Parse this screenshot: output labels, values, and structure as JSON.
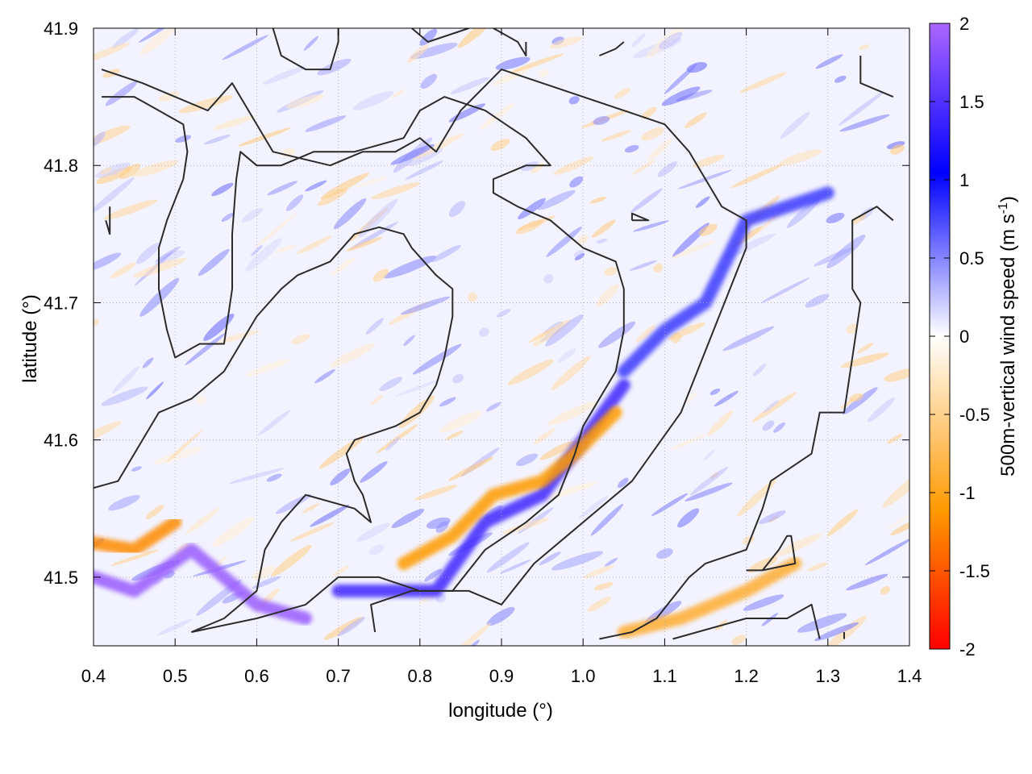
{
  "chart_data": {
    "type": "heatmap",
    "xlabel": "longitude (°)",
    "ylabel": "latitude (°)",
    "colorbar_label": "500m-vertical wind speed (m s",
    "colorbar_label_sup": "-1",
    "colorbar_label_end": ")",
    "xlim": [
      0.4,
      1.4
    ],
    "ylim": [
      41.45,
      41.9
    ],
    "x_ticks": [
      0.4,
      0.5,
      0.6,
      0.7,
      0.8,
      0.9,
      1.0,
      1.1,
      1.2,
      1.3,
      1.4
    ],
    "x_tick_labels": [
      "0.4",
      "0.5",
      "0.6",
      "0.7",
      "0.8",
      "0.9",
      "1.0",
      "1.1",
      "1.2",
      "1.3",
      "1.4"
    ],
    "y_ticks": [
      41.5,
      41.6,
      41.7,
      41.8,
      41.9
    ],
    "y_tick_labels": [
      "41.5",
      "41.6",
      "41.7",
      "41.8",
      "41.9"
    ],
    "colorbar_range": [
      -2,
      2
    ],
    "colorbar_ticks": [
      2,
      1.5,
      1,
      0.5,
      0,
      -0.5,
      -1,
      -1.5,
      -2
    ],
    "colorbar_tick_labels": [
      "2",
      "1.5",
      "1",
      "0.5",
      "0",
      "-0.5",
      "-1",
      "-1.5",
      "-2"
    ],
    "colormap": [
      "#ff0000",
      "#ff9900",
      "#ffffff",
      "#0000ff",
      "#aa66ff"
    ],
    "grid": true,
    "features": [
      {
        "name": "updraft-band-southwest",
        "value": 1.9,
        "points": [
          [
            0.4,
            41.5
          ],
          [
            0.45,
            41.49
          ],
          [
            0.52,
            41.52
          ],
          [
            0.6,
            41.48
          ],
          [
            0.66,
            41.47
          ]
        ]
      },
      {
        "name": "downdraft-band-southwest",
        "value": -1.2,
        "points": [
          [
            0.4,
            41.525
          ],
          [
            0.45,
            41.52
          ],
          [
            0.5,
            41.54
          ]
        ]
      },
      {
        "name": "updraft-band-ridge",
        "value": 1.4,
        "points": [
          [
            0.7,
            41.49
          ],
          [
            0.82,
            41.49
          ],
          [
            0.88,
            41.54
          ],
          [
            0.95,
            41.56
          ],
          [
            1.0,
            41.6
          ],
          [
            1.05,
            41.64
          ]
        ]
      },
      {
        "name": "downdraft-band-ridge",
        "value": -1.1,
        "points": [
          [
            0.78,
            41.51
          ],
          [
            0.84,
            41.53
          ],
          [
            0.89,
            41.56
          ],
          [
            0.95,
            41.57
          ],
          [
            0.99,
            41.59
          ],
          [
            1.04,
            41.62
          ]
        ]
      },
      {
        "name": "downdraft-band-southeast",
        "value": -0.9,
        "points": [
          [
            1.05,
            41.46
          ],
          [
            1.12,
            41.47
          ],
          [
            1.2,
            41.49
          ],
          [
            1.26,
            41.51
          ]
        ]
      },
      {
        "name": "updraft-patch-east",
        "value": 0.8,
        "points": [
          [
            1.05,
            41.65
          ],
          [
            1.1,
            41.68
          ],
          [
            1.15,
            41.7
          ],
          [
            1.2,
            41.76
          ],
          [
            1.3,
            41.78
          ]
        ]
      }
    ],
    "contours": [
      [
        [
          0.41,
          41.87
        ],
        [
          0.46,
          41.86
        ],
        [
          0.54,
          41.84
        ],
        [
          0.57,
          41.86
        ],
        [
          0.6,
          41.83
        ],
        [
          0.62,
          41.81
        ],
        [
          0.69,
          41.8
        ],
        [
          0.73,
          41.81
        ],
        [
          0.77,
          41.81
        ],
        [
          0.8,
          41.82
        ],
        [
          0.82,
          41.81
        ],
        [
          0.85,
          41.84
        ],
        [
          0.9,
          41.87
        ],
        [
          0.95,
          41.86
        ],
        [
          1.0,
          41.85
        ],
        [
          1.05,
          41.84
        ],
        [
          1.1,
          41.83
        ],
        [
          1.13,
          41.81
        ],
        [
          1.15,
          41.79
        ],
        [
          1.17,
          41.77
        ],
        [
          1.2,
          41.76
        ],
        [
          1.2,
          41.74
        ],
        [
          1.16,
          41.68
        ],
        [
          1.12,
          41.62
        ],
        [
          1.06,
          41.57
        ],
        [
          1.0,
          41.54
        ],
        [
          0.94,
          41.51
        ],
        [
          0.9,
          41.48
        ],
        [
          0.86,
          41.49
        ],
        [
          0.79,
          41.49
        ],
        [
          0.74,
          41.48
        ],
        [
          0.745,
          41.46
        ]
      ],
      [
        [
          0.41,
          41.85
        ],
        [
          0.45,
          41.85
        ],
        [
          0.48,
          41.84
        ],
        [
          0.51,
          41.83
        ],
        [
          0.515,
          41.81
        ],
        [
          0.51,
          41.79
        ],
        [
          0.49,
          41.76
        ],
        [
          0.48,
          41.74
        ],
        [
          0.48,
          41.71
        ],
        [
          0.49,
          41.68
        ],
        [
          0.5,
          41.66
        ],
        [
          0.53,
          41.67
        ],
        [
          0.56,
          41.67
        ],
        [
          0.57,
          41.71
        ],
        [
          0.57,
          41.75
        ],
        [
          0.575,
          41.79
        ],
        [
          0.58,
          41.81
        ],
        [
          0.6,
          41.8
        ],
        [
          0.63,
          41.8
        ],
        [
          0.67,
          41.81
        ],
        [
          0.72,
          41.81
        ],
        [
          0.78,
          41.82
        ],
        [
          0.8,
          41.84
        ],
        [
          0.83,
          41.85
        ],
        [
          0.88,
          41.84
        ],
        [
          0.93,
          41.82
        ],
        [
          0.96,
          41.8
        ],
        [
          0.93,
          41.8
        ],
        [
          0.89,
          41.79
        ],
        [
          0.89,
          41.78
        ],
        [
          0.92,
          41.77
        ],
        [
          0.96,
          41.76
        ],
        [
          1.0,
          41.74
        ],
        [
          1.04,
          41.73
        ],
        [
          1.05,
          41.71
        ],
        [
          1.05,
          41.68
        ],
        [
          1.04,
          41.65
        ],
        [
          1.02,
          41.63
        ],
        [
          1.0,
          41.61
        ],
        [
          0.99,
          41.59
        ],
        [
          0.97,
          41.56
        ],
        [
          0.93,
          41.54
        ],
        [
          0.88,
          41.52
        ],
        [
          0.84,
          41.49
        ],
        [
          0.8,
          41.49
        ],
        [
          0.75,
          41.5
        ],
        [
          0.7,
          41.5
        ],
        [
          0.66,
          41.48
        ],
        [
          0.6,
          41.47
        ],
        [
          0.52,
          41.46
        ]
      ],
      [
        [
          0.4,
          41.565
        ],
        [
          0.43,
          41.57
        ],
        [
          0.46,
          41.6
        ],
        [
          0.48,
          41.62
        ],
        [
          0.52,
          41.63
        ],
        [
          0.56,
          41.65
        ],
        [
          0.58,
          41.67
        ],
        [
          0.6,
          41.69
        ],
        [
          0.63,
          41.71
        ],
        [
          0.65,
          41.72
        ],
        [
          0.69,
          41.73
        ],
        [
          0.72,
          41.75
        ],
        [
          0.75,
          41.755
        ],
        [
          0.78,
          41.75
        ],
        [
          0.79,
          41.74
        ],
        [
          0.82,
          41.72
        ],
        [
          0.84,
          41.71
        ],
        [
          0.84,
          41.69
        ],
        [
          0.83,
          41.66
        ],
        [
          0.82,
          41.64
        ],
        [
          0.8,
          41.62
        ],
        [
          0.77,
          41.61
        ],
        [
          0.72,
          41.6
        ],
        [
          0.71,
          41.59
        ],
        [
          0.72,
          41.57
        ],
        [
          0.73,
          41.56
        ],
        [
          0.74,
          41.54
        ],
        [
          0.72,
          41.55
        ],
        [
          0.66,
          41.56
        ],
        [
          0.63,
          41.54
        ],
        [
          0.61,
          41.52
        ],
        [
          0.6,
          41.49
        ],
        [
          0.56,
          41.47
        ],
        [
          0.52,
          41.46
        ]
      ],
      [
        [
          1.38,
          41.85
        ],
        [
          1.34,
          41.86
        ],
        [
          1.34,
          41.88
        ]
      ],
      [
        [
          0.62,
          41.9
        ],
        [
          0.63,
          41.88
        ],
        [
          0.66,
          41.87
        ],
        [
          0.69,
          41.87
        ],
        [
          0.7,
          41.89
        ],
        [
          0.7,
          41.9
        ]
      ],
      [
        [
          0.79,
          41.9
        ],
        [
          0.81,
          41.89
        ],
        [
          0.86,
          41.9
        ]
      ],
      [
        [
          0.89,
          41.9
        ],
        [
          0.92,
          41.89
        ],
        [
          0.93,
          41.88
        ],
        [
          0.93,
          41.89
        ]
      ],
      [
        [
          1.02,
          41.88
        ],
        [
          1.04,
          41.885
        ],
        [
          1.05,
          41.89
        ]
      ],
      [
        [
          0.42,
          41.77
        ],
        [
          0.42,
          41.75
        ],
        [
          0.415,
          41.76
        ]
      ],
      [
        [
          1.06,
          41.76
        ],
        [
          1.08,
          41.76
        ],
        [
          1.06,
          41.765
        ],
        [
          1.06,
          41.76
        ]
      ],
      [
        [
          1.38,
          41.76
        ],
        [
          1.36,
          41.77
        ],
        [
          1.33,
          41.76
        ],
        [
          1.33,
          41.71
        ],
        [
          1.34,
          41.7
        ],
        [
          1.33,
          41.66
        ],
        [
          1.32,
          41.62
        ],
        [
          1.29,
          41.62
        ],
        [
          1.28,
          41.59
        ],
        [
          1.23,
          41.57
        ],
        [
          1.22,
          41.55
        ],
        [
          1.2,
          41.52
        ],
        [
          1.15,
          41.51
        ],
        [
          1.13,
          41.5
        ],
        [
          1.09,
          41.47
        ],
        [
          1.06,
          41.46
        ],
        [
          1.02,
          41.455
        ]
      ],
      [
        [
          1.2,
          41.505
        ],
        [
          1.22,
          41.505
        ],
        [
          1.24,
          41.52
        ],
        [
          1.25,
          41.53
        ],
        [
          1.255,
          41.53
        ],
        [
          1.26,
          41.51
        ],
        [
          1.22,
          41.505
        ]
      ],
      [
        [
          1.11,
          41.455
        ],
        [
          1.2,
          41.47
        ],
        [
          1.25,
          41.47
        ],
        [
          1.28,
          41.48
        ],
        [
          1.29,
          41.455
        ]
      ],
      [
        [
          1.32,
          41.455
        ],
        [
          1.32,
          41.46
        ]
      ]
    ]
  }
}
